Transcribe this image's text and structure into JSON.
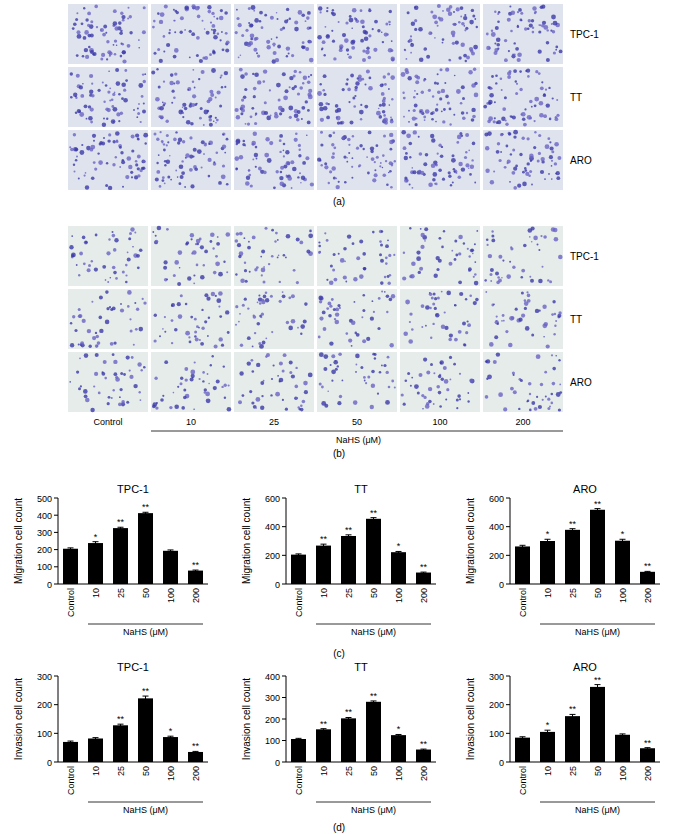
{
  "panel_labels": [
    "(a)",
    "(b)",
    "(c)",
    "(d)"
  ],
  "image_panels": {
    "rows": [
      "TPC-1",
      "TT",
      "ARO"
    ],
    "columns": [
      "Control",
      "10",
      "25",
      "50",
      "100",
      "200"
    ],
    "column_group_label": "NaHS (μM)"
  },
  "chart_data": [
    {
      "type": "bar",
      "title": "TPC-1",
      "y_label": "Migration cell count",
      "x_label": "NaHS (μM)",
      "categories": [
        "Control",
        "10",
        "25",
        "50",
        "100",
        "200"
      ],
      "values": [
        205,
        238,
        325,
        412,
        193,
        78
      ],
      "errors": [
        5,
        8,
        5,
        5,
        5,
        3
      ],
      "annotations": [
        null,
        "*",
        "**",
        "**",
        null,
        "**"
      ],
      "color": "#000000",
      "ylim": [
        0,
        500
      ],
      "yticks": [
        0,
        100,
        200,
        300,
        400,
        500
      ]
    },
    {
      "type": "bar",
      "title": "TT",
      "y_label": "Migration cell count",
      "x_label": "NaHS (μM)",
      "categories": [
        "Control",
        "10",
        "25",
        "50",
        "100",
        "200"
      ],
      "values": [
        205,
        268,
        335,
        455,
        222,
        80
      ],
      "errors": [
        5,
        10,
        8,
        8,
        5,
        3
      ],
      "annotations": [
        null,
        "**",
        "**",
        "**",
        "*",
        "**"
      ],
      "color": "#000000",
      "ylim": [
        0,
        600
      ],
      "yticks": [
        0,
        200,
        400,
        600
      ]
    },
    {
      "type": "bar",
      "title": "ARO",
      "y_label": "Migration cell count",
      "x_label": "NaHS (μM)",
      "categories": [
        "Control",
        "10",
        "25",
        "50",
        "100",
        "200"
      ],
      "values": [
        262,
        300,
        378,
        518,
        302,
        85
      ],
      "errors": [
        8,
        12,
        8,
        8,
        10,
        3
      ],
      "annotations": [
        null,
        "*",
        "**",
        "**",
        "*",
        "**"
      ],
      "color": "#000000",
      "ylim": [
        0,
        600
      ],
      "yticks": [
        0,
        200,
        400,
        600
      ]
    },
    {
      "type": "bar",
      "title": "TPC-1",
      "y_label": "Invasion cell count",
      "x_label": "NaHS (μM)",
      "categories": [
        "Control",
        "10",
        "25",
        "50",
        "100",
        "200"
      ],
      "values": [
        70,
        82,
        128,
        222,
        87,
        35
      ],
      "errors": [
        3,
        3,
        4,
        8,
        3,
        2
      ],
      "annotations": [
        null,
        null,
        "**",
        "**",
        "*",
        "**"
      ],
      "color": "#000000",
      "ylim": [
        0,
        300
      ],
      "yticks": [
        0,
        100,
        200,
        300
      ]
    },
    {
      "type": "bar",
      "title": "TT",
      "y_label": "Invasion cell count",
      "x_label": "NaHS (μM)",
      "categories": [
        "Control",
        "10",
        "25",
        "50",
        "100",
        "200"
      ],
      "values": [
        107,
        152,
        203,
        280,
        125,
        58
      ],
      "errors": [
        3,
        3,
        4,
        4,
        3,
        2
      ],
      "annotations": [
        null,
        "**",
        "**",
        "**",
        "*",
        "**"
      ],
      "color": "#000000",
      "ylim": [
        0,
        400
      ],
      "yticks": [
        0,
        100,
        200,
        300,
        400
      ]
    },
    {
      "type": "bar",
      "title": "ARO",
      "y_label": "Invasion cell count",
      "x_label": "NaHS (μM)",
      "categories": [
        "Control",
        "10",
        "25",
        "50",
        "100",
        "200"
      ],
      "values": [
        85,
        105,
        160,
        262,
        95,
        48
      ],
      "errors": [
        3,
        6,
        6,
        8,
        3,
        2
      ],
      "annotations": [
        null,
        "*",
        "**",
        "**",
        null,
        "**"
      ],
      "color": "#000000",
      "ylim": [
        0,
        300
      ],
      "yticks": [
        0,
        100,
        200,
        300
      ]
    }
  ]
}
